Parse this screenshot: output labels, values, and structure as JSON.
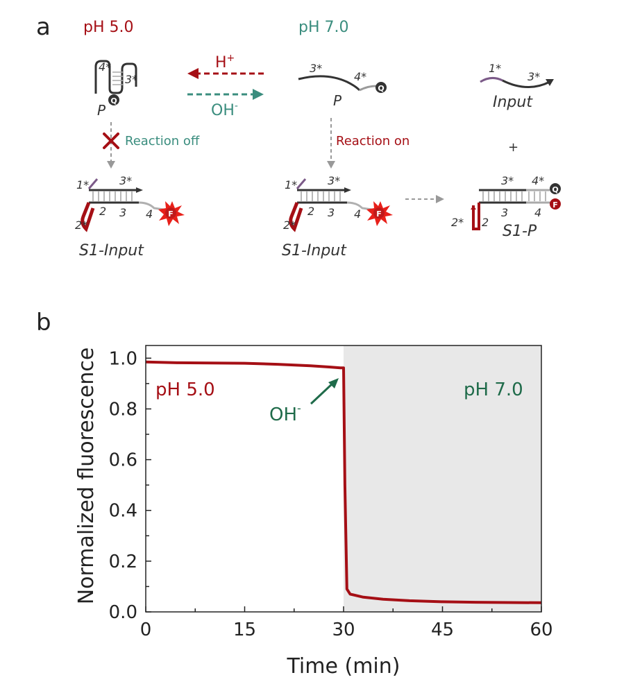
{
  "panel_a": {
    "label": "a",
    "ph_low": "pH 5.0",
    "ph_high": "pH 7.0",
    "arrow_h": "H",
    "arrow_h_sup": "+",
    "arrow_oh": "OH",
    "arrow_oh_sup": "-",
    "reaction_off": "Reaction off",
    "reaction_on": "Reaction on",
    "plus": "+",
    "label_p": "P",
    "label_input": "Input",
    "label_s1_input": "S1-Input",
    "label_s1_p": "S1-P",
    "dom_1s": "1*",
    "dom_2s": "2*",
    "dom_3s": "3*",
    "dom_4s": "4*",
    "dom_2": "2",
    "dom_3": "3",
    "dom_4": "4",
    "quencher": "Q",
    "fluor": "F",
    "colors": {
      "dark_red": "#a50f15",
      "teal": "#3a8d7e",
      "purple": "#7b5a88",
      "gray": "#9a9a9a",
      "dark": "#333333"
    }
  },
  "panel_b": {
    "label": "b",
    "ann_ph_low": "pH 5.0",
    "ann_ph_high": "pH 7.0",
    "ann_oh": "OH",
    "ann_oh_sup": "-"
  },
  "chart_data": {
    "type": "line",
    "xlabel": "Time (min)",
    "ylabel": "Normalized fluorescence",
    "xlim": [
      0,
      60
    ],
    "ylim": [
      0,
      1.05
    ],
    "xticks": [
      0,
      15,
      30,
      45,
      60
    ],
    "xtick_labels": [
      "0",
      "15",
      "30",
      "45",
      "60"
    ],
    "yticks": [
      0,
      0.2,
      0.4,
      0.6,
      0.8,
      1.0
    ],
    "ytick_labels": [
      "0.0",
      "0.2",
      "0.4",
      "0.6",
      "0.8",
      "1.0"
    ],
    "shaded_region": {
      "x": [
        30,
        60
      ],
      "color": "#e8e8e8"
    },
    "grid": false,
    "series": [
      {
        "color": "#a50f15",
        "x": [
          0,
          5,
          10,
          15,
          20,
          25,
          28,
          29.5,
          30,
          30.2,
          30.5,
          31,
          33,
          36,
          40,
          45,
          50,
          55,
          60
        ],
        "y": [
          0.985,
          0.982,
          0.981,
          0.98,
          0.976,
          0.97,
          0.965,
          0.962,
          0.962,
          0.5,
          0.09,
          0.07,
          0.058,
          0.05,
          0.044,
          0.04,
          0.038,
          0.037,
          0.036
        ]
      }
    ]
  }
}
